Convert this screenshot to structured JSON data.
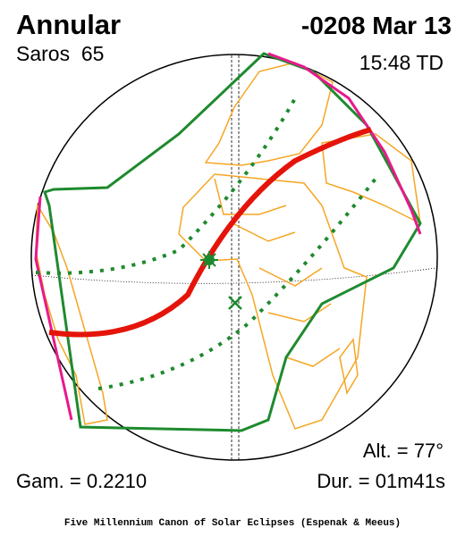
{
  "header": {
    "type": "Annular",
    "date": "-0208 Mar 13",
    "saros": "Saros  65",
    "time": "15:48 TD"
  },
  "stats": {
    "altitude": "Alt. = 77°",
    "gamma": "Gam. = 0.2210",
    "duration": "Dur. = 01m41s"
  },
  "footer": "Five Millennium Canon of Solar Eclipses (Espenak & Meeus)"
}
